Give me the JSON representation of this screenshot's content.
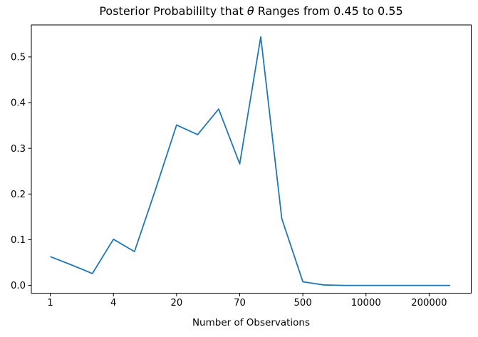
{
  "figure": {
    "title_prefix": "Posterior Probabililty that ",
    "title_theta": "θ",
    "title_suffix": " Ranges from 0.45 to 0.55"
  },
  "chart_data": {
    "type": "line",
    "title": "Posterior Probabililty that θ Ranges from 0.45 to 0.55",
    "xlabel": "Number of Observations",
    "ylabel": "",
    "grid": false,
    "legend": false,
    "background": "#ffffff",
    "axis_color": "#000000",
    "x_scale_note": "20 points evenly spaced by index; labeled ticks at every 3rd point show number of observations",
    "series": [
      {
        "name": "posterior-probability",
        "color": "#1f77b4",
        "x_index": [
          0,
          1,
          2,
          3,
          4,
          5,
          6,
          7,
          8,
          9,
          10,
          11,
          12,
          13,
          14,
          15,
          16,
          17,
          18,
          19
        ],
        "values": [
          0.063,
          0.045,
          0.026,
          0.101,
          0.074,
          0.21,
          0.351,
          0.33,
          0.386,
          0.266,
          0.544,
          0.146,
          0.008,
          0.001,
          0.0,
          0.0,
          0.0,
          0.0,
          0.0,
          0.0
        ]
      }
    ],
    "x_ticks": {
      "indices": [
        0,
        3,
        6,
        9,
        12,
        15,
        18
      ],
      "labels": [
        "1",
        "4",
        "20",
        "70",
        "500",
        "10000",
        "200000"
      ]
    },
    "y_ticks": {
      "values": [
        0.0,
        0.1,
        0.2,
        0.3,
        0.4,
        0.5
      ],
      "labels": [
        "0.0",
        "0.1",
        "0.2",
        "0.3",
        "0.4",
        "0.5"
      ]
    },
    "xlim": [
      -0.9,
      20.0
    ],
    "ylim": [
      -0.017,
      0.57
    ]
  }
}
